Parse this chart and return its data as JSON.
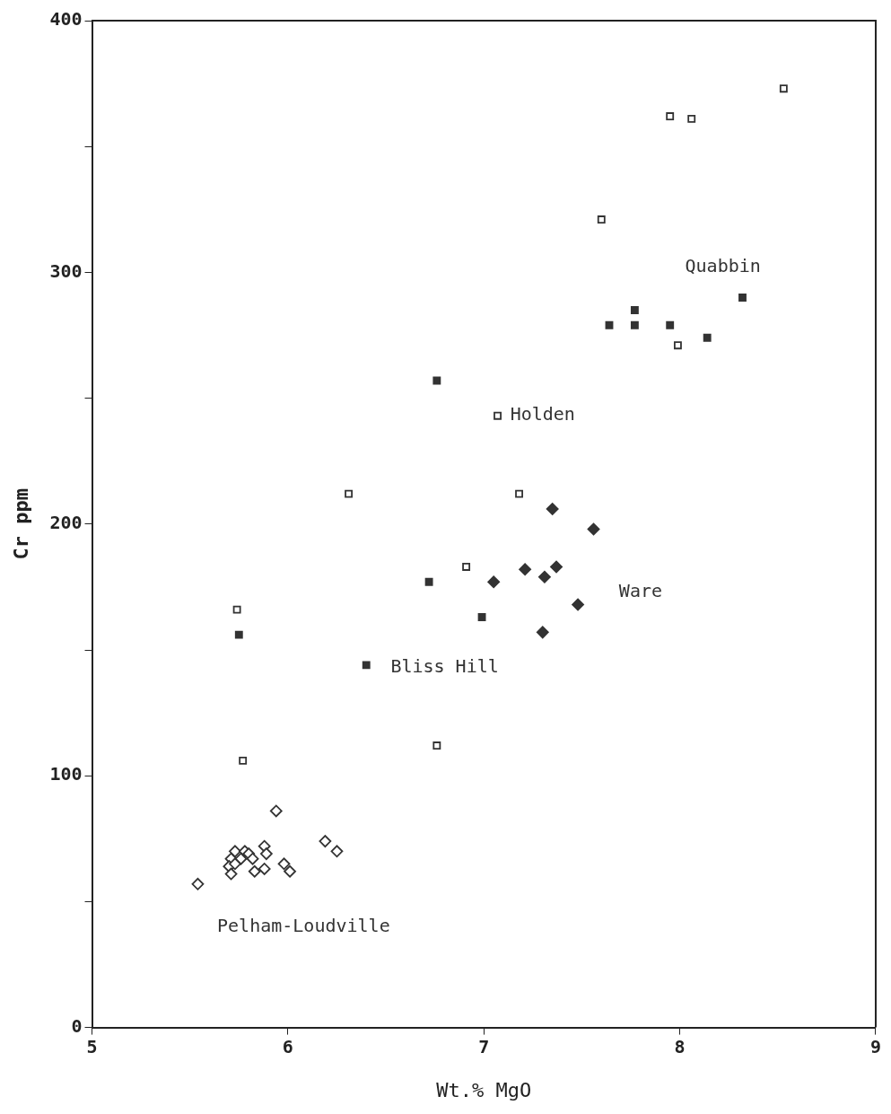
{
  "chart_data": {
    "type": "scatter",
    "xlabel": "Wt.% MgO",
    "ylabel": "Cr ppm",
    "xlim": [
      5,
      9
    ],
    "xticks": [
      5,
      6,
      7,
      8,
      9
    ],
    "ylim": [
      0,
      400
    ],
    "yticks": [
      0,
      {
        "value": 50,
        "label": null
      },
      100,
      {
        "value": 150,
        "label": null
      },
      200,
      {
        "value": 250,
        "label": null
      },
      300,
      {
        "value": 350,
        "label": null
      },
      400
    ],
    "grid": false,
    "legend": false,
    "series": [
      {
        "name": "Holden",
        "color": "#333333",
        "marker": "square",
        "x": [
          8.53,
          7.95,
          8.06,
          7.6,
          7.99,
          7.07,
          6.31,
          7.18,
          6.91,
          5.74,
          5.77,
          6.76
        ],
        "values": [
          373,
          362,
          361,
          321,
          271,
          243,
          212,
          212,
          183,
          166,
          106,
          112
        ]
      },
      {
        "name": "Quabbin",
        "color": "#333333",
        "marker": "square",
        "x": [
          6.76,
          7.64,
          7.77,
          7.77,
          7.95,
          8.14,
          8.32
        ],
        "values": [
          257,
          279,
          285,
          279,
          279,
          274,
          290
        ]
      },
      {
        "name": "Bliss Hill",
        "color": "#333333",
        "marker": "square",
        "x": [
          5.75,
          6.99,
          6.4,
          6.72
        ],
        "values": [
          156,
          163,
          144,
          177
        ]
      },
      {
        "name": "Ware",
        "color": "#333333",
        "marker": "diamond",
        "x": [
          7.35,
          7.56,
          7.21,
          7.31,
          7.37,
          7.05,
          7.48,
          7.3
        ],
        "values": [
          206,
          198,
          182,
          179,
          183,
          177,
          168,
          157
        ]
      },
      {
        "name": "Pelham-Loudville",
        "color": "#333333",
        "marker": "diamond",
        "x": [
          5.94,
          5.54,
          6.19,
          6.25,
          5.88,
          5.89,
          5.73,
          5.78,
          5.8,
          5.71,
          5.76,
          5.82,
          5.7,
          5.73,
          5.71,
          5.83,
          5.88,
          5.98,
          6.01
        ],
        "values": [
          86,
          57,
          74,
          70,
          72,
          69,
          70,
          70,
          69,
          67,
          67,
          67,
          64,
          65,
          61,
          62,
          63,
          65,
          62
        ]
      }
    ]
  }
}
